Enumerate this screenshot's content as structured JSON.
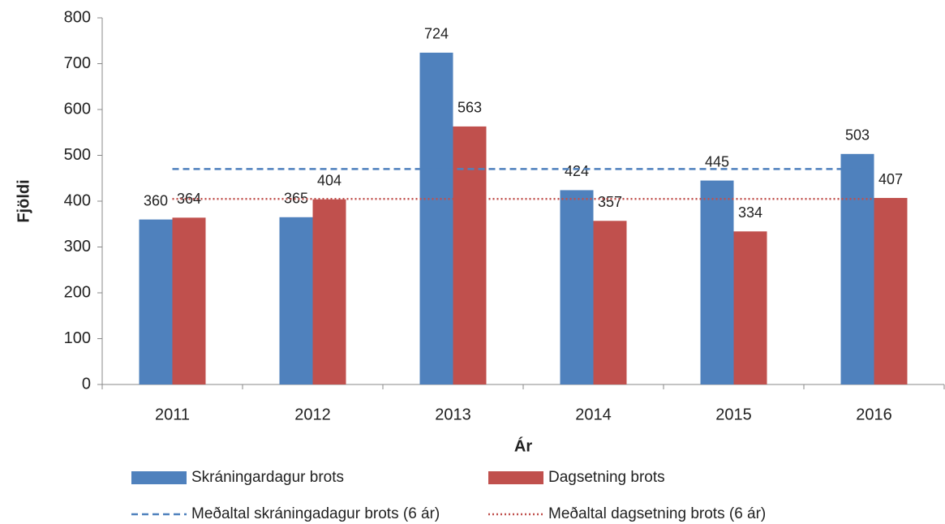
{
  "chart_data": {
    "type": "bar",
    "x_label": "Ár",
    "y_label": "Fjöldi",
    "categories": [
      "2011",
      "2012",
      "2013",
      "2014",
      "2015",
      "2016"
    ],
    "series": [
      {
        "name": "Skráningardagur brots",
        "color": "#4f81bd",
        "values": [
          360,
          365,
          724,
          424,
          445,
          503
        ]
      },
      {
        "name": "Dagsetning brots",
        "color": "#c0504d",
        "values": [
          364,
          404,
          563,
          357,
          334,
          407
        ]
      },
      {
        "name": "Meðaltal skráningadagur brots (6 ár)",
        "type": "line",
        "dash": "dashed",
        "color": "#4f81bd",
        "values": [
          470.17,
          470.17,
          470.17,
          470.17,
          470.17,
          470.17
        ]
      },
      {
        "name": "Meðaltal dagsetning brots (6 ár)",
        "type": "line",
        "dash": "dotted",
        "color": "#c0504d",
        "values": [
          404.83,
          404.83,
          404.83,
          404.83,
          404.83,
          404.83
        ]
      }
    ],
    "ylim": [
      0,
      800
    ],
    "yticks": [
      0,
      100,
      200,
      300,
      400,
      500,
      600,
      700,
      800
    ],
    "grid": false,
    "legend": "bottom"
  }
}
